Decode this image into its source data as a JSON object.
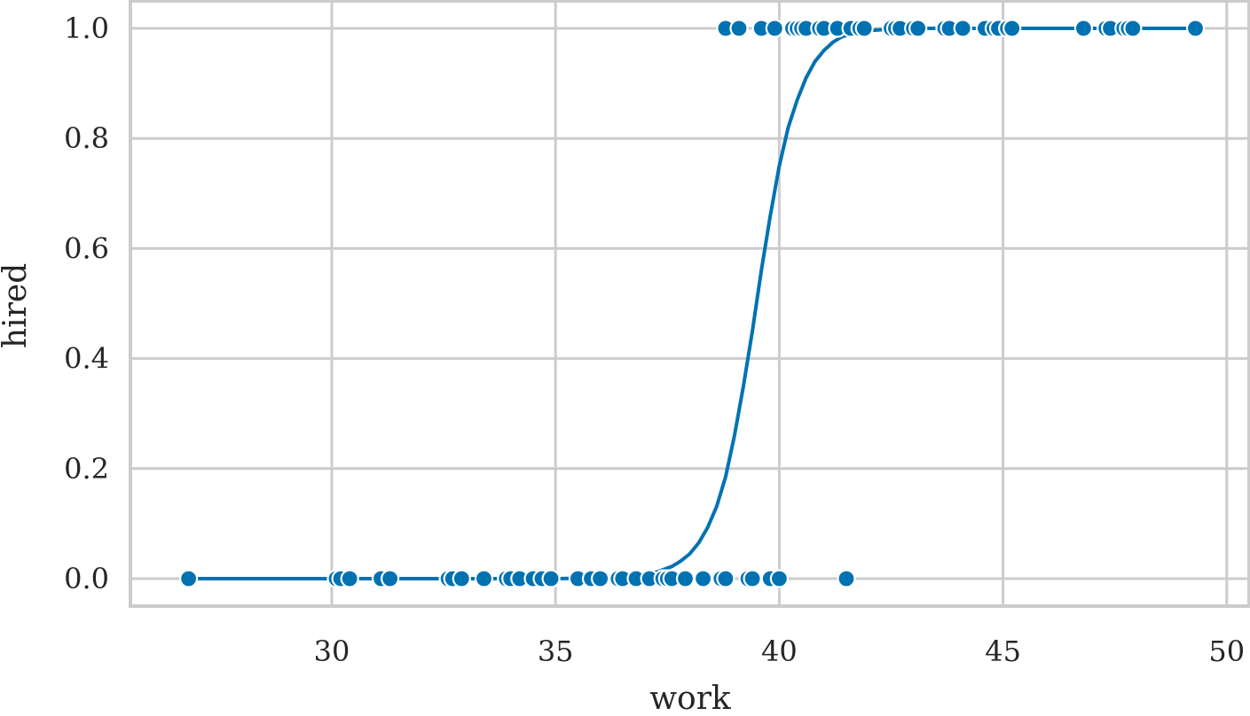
{
  "chart_data": {
    "type": "scatter",
    "title": "",
    "xlabel": "work",
    "ylabel": "hired",
    "xlim": [
      25.5,
      50.5
    ],
    "ylim": [
      -0.05,
      1.05
    ],
    "xticks": [
      30,
      35,
      40,
      45,
      50
    ],
    "yticks": [
      0.0,
      0.2,
      0.4,
      0.6,
      0.8,
      1.0
    ],
    "xtick_labels": [
      "30",
      "35",
      "40",
      "45",
      "50"
    ],
    "ytick_labels": [
      "0.0",
      "0.2",
      "0.4",
      "0.6",
      "0.8",
      "1.0"
    ],
    "grid": true,
    "color": "#0072b2",
    "points": [
      {
        "x": 26.8,
        "y": 0
      },
      {
        "x": 30.1,
        "y": 0
      },
      {
        "x": 30.2,
        "y": 0
      },
      {
        "x": 30.4,
        "y": 0
      },
      {
        "x": 31.1,
        "y": 0
      },
      {
        "x": 31.3,
        "y": 0
      },
      {
        "x": 32.6,
        "y": 0
      },
      {
        "x": 32.7,
        "y": 0
      },
      {
        "x": 32.9,
        "y": 0
      },
      {
        "x": 33.4,
        "y": 0
      },
      {
        "x": 33.9,
        "y": 0
      },
      {
        "x": 34.0,
        "y": 0
      },
      {
        "x": 34.2,
        "y": 0
      },
      {
        "x": 34.5,
        "y": 0
      },
      {
        "x": 34.7,
        "y": 0
      },
      {
        "x": 34.9,
        "y": 0
      },
      {
        "x": 35.5,
        "y": 0
      },
      {
        "x": 35.8,
        "y": 0
      },
      {
        "x": 36.0,
        "y": 0
      },
      {
        "x": 36.4,
        "y": 0
      },
      {
        "x": 36.5,
        "y": 0
      },
      {
        "x": 36.8,
        "y": 0
      },
      {
        "x": 37.1,
        "y": 0
      },
      {
        "x": 37.4,
        "y": 0
      },
      {
        "x": 37.5,
        "y": 0
      },
      {
        "x": 37.6,
        "y": 0
      },
      {
        "x": 37.9,
        "y": 0
      },
      {
        "x": 38.3,
        "y": 0
      },
      {
        "x": 38.7,
        "y": 0
      },
      {
        "x": 38.8,
        "y": 0
      },
      {
        "x": 39.3,
        "y": 0
      },
      {
        "x": 39.4,
        "y": 0
      },
      {
        "x": 39.8,
        "y": 0
      },
      {
        "x": 40.0,
        "y": 0
      },
      {
        "x": 41.5,
        "y": 0
      },
      {
        "x": 38.8,
        "y": 1
      },
      {
        "x": 39.1,
        "y": 1
      },
      {
        "x": 39.6,
        "y": 1
      },
      {
        "x": 39.9,
        "y": 1
      },
      {
        "x": 40.3,
        "y": 1
      },
      {
        "x": 40.4,
        "y": 1
      },
      {
        "x": 40.5,
        "y": 1
      },
      {
        "x": 40.6,
        "y": 1
      },
      {
        "x": 40.9,
        "y": 1
      },
      {
        "x": 41.0,
        "y": 1
      },
      {
        "x": 41.3,
        "y": 1
      },
      {
        "x": 41.6,
        "y": 1
      },
      {
        "x": 41.8,
        "y": 1
      },
      {
        "x": 41.9,
        "y": 1
      },
      {
        "x": 42.5,
        "y": 1
      },
      {
        "x": 42.6,
        "y": 1
      },
      {
        "x": 42.7,
        "y": 1
      },
      {
        "x": 43.0,
        "y": 1
      },
      {
        "x": 43.1,
        "y": 1
      },
      {
        "x": 43.7,
        "y": 1
      },
      {
        "x": 43.8,
        "y": 1
      },
      {
        "x": 44.1,
        "y": 1
      },
      {
        "x": 44.6,
        "y": 1
      },
      {
        "x": 44.8,
        "y": 1
      },
      {
        "x": 44.9,
        "y": 1
      },
      {
        "x": 45.1,
        "y": 1
      },
      {
        "x": 45.2,
        "y": 1
      },
      {
        "x": 46.8,
        "y": 1
      },
      {
        "x": 47.3,
        "y": 1
      },
      {
        "x": 47.4,
        "y": 1
      },
      {
        "x": 47.7,
        "y": 1
      },
      {
        "x": 47.8,
        "y": 1
      },
      {
        "x": 47.9,
        "y": 1
      },
      {
        "x": 49.3,
        "y": 1
      }
    ],
    "fit_curve": {
      "type": "logistic",
      "x": [
        26.8,
        30.0,
        32.0,
        34.0,
        35.0,
        36.0,
        36.5,
        37.0,
        37.3,
        37.6,
        37.8,
        38.0,
        38.2,
        38.4,
        38.6,
        38.8,
        39.0,
        39.2,
        39.4,
        39.6,
        39.8,
        40.0,
        40.2,
        40.4,
        40.6,
        40.8,
        41.0,
        41.2,
        41.4,
        41.7,
        42.0,
        42.5,
        43.0,
        45.0,
        47.0,
        49.3
      ],
      "y": [
        0.0,
        0.0,
        0.0,
        0.0,
        0.0,
        0.001,
        0.003,
        0.007,
        0.013,
        0.022,
        0.032,
        0.045,
        0.065,
        0.093,
        0.131,
        0.185,
        0.26,
        0.35,
        0.45,
        0.56,
        0.66,
        0.75,
        0.82,
        0.87,
        0.91,
        0.94,
        0.96,
        0.975,
        0.985,
        0.992,
        0.996,
        0.999,
        1.0,
        1.0,
        1.0,
        1.0
      ]
    }
  }
}
